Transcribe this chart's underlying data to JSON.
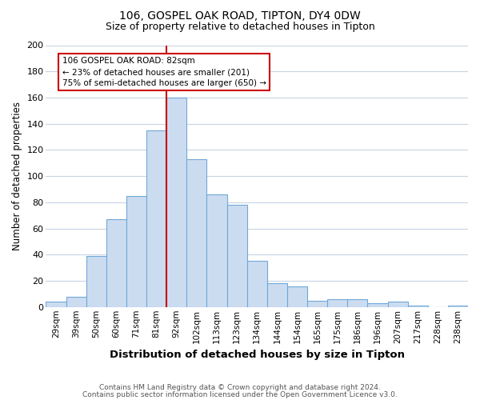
{
  "title1": "106, GOSPEL OAK ROAD, TIPTON, DY4 0DW",
  "title2": "Size of property relative to detached houses in Tipton",
  "xlabel": "Distribution of detached houses by size in Tipton",
  "ylabel": "Number of detached properties",
  "bar_labels": [
    "29sqm",
    "39sqm",
    "50sqm",
    "60sqm",
    "71sqm",
    "81sqm",
    "92sqm",
    "102sqm",
    "113sqm",
    "123sqm",
    "134sqm",
    "144sqm",
    "154sqm",
    "165sqm",
    "175sqm",
    "186sqm",
    "196sqm",
    "207sqm",
    "217sqm",
    "228sqm",
    "238sqm"
  ],
  "bar_values": [
    4,
    8,
    39,
    67,
    85,
    135,
    160,
    113,
    86,
    78,
    35,
    18,
    16,
    5,
    6,
    6,
    3,
    4,
    1,
    0,
    1
  ],
  "bar_color": "#ccdcf0",
  "bar_edge_color": "#6fa8d8",
  "property_line_bar_index": 5,
  "annotation_title": "106 GOSPEL OAK ROAD: 82sqm",
  "annotation_line1": "← 23% of detached houses are smaller (201)",
  "annotation_line2": "75% of semi-detached houses are larger (650) →",
  "annotation_box_facecolor": "#ffffff",
  "annotation_box_edgecolor": "#cc0000",
  "vline_color": "#cc0000",
  "ylim": [
    0,
    200
  ],
  "yticks": [
    0,
    20,
    40,
    60,
    80,
    100,
    120,
    140,
    160,
    180,
    200
  ],
  "footer1": "Contains HM Land Registry data © Crown copyright and database right 2024.",
  "footer2": "Contains public sector information licensed under the Open Government Licence v3.0.",
  "background_color": "#ffffff",
  "grid_color": "#c8d4e4"
}
